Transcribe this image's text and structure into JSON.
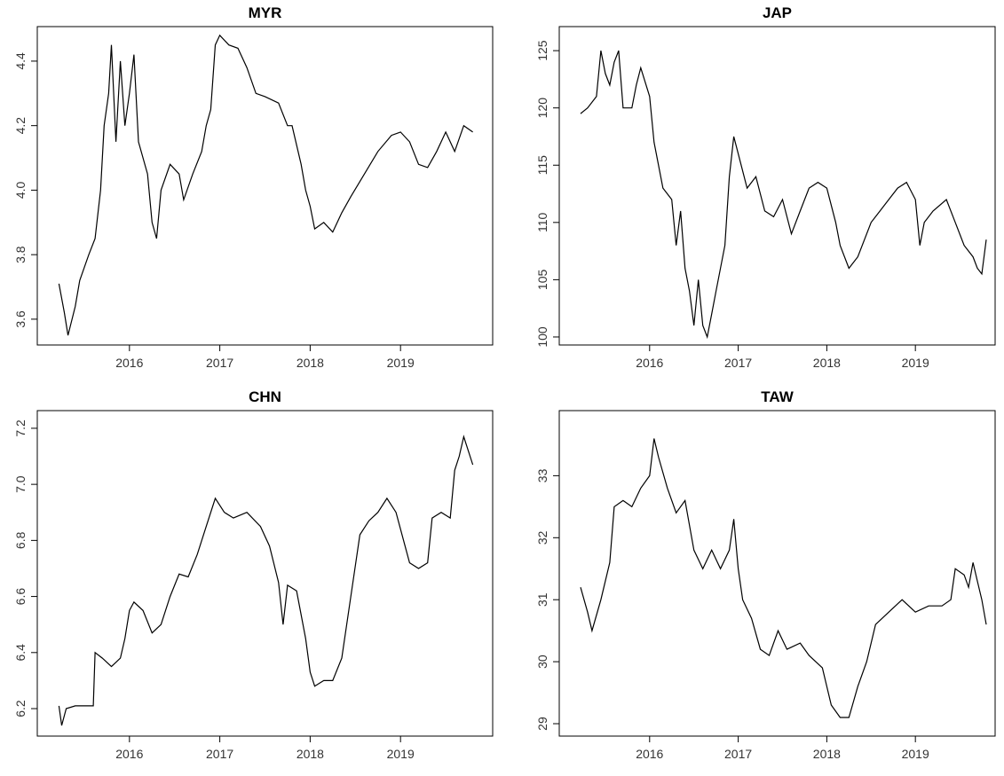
{
  "chart_data": [
    {
      "type": "line",
      "title": "MYR",
      "color": "#000000",
      "xlim": [
        2014.98,
        2020.02
      ],
      "ylim": [
        3.52,
        4.507
      ],
      "xticks": [
        2016,
        2017,
        2018,
        2019
      ],
      "yticks": [
        3.6,
        3.8,
        {
          "value": 4,
          "label": "4.0"
        },
        4.2,
        4.4
      ],
      "x": [
        2015.22,
        2015.28,
        2015.32,
        2015.4,
        2015.45,
        2015.55,
        2015.62,
        2015.68,
        2015.72,
        2015.77,
        2015.8,
        2015.85,
        2015.9,
        2015.95,
        2016.0,
        2016.05,
        2016.1,
        2016.2,
        2016.25,
        2016.3,
        2016.35,
        2016.45,
        2016.55,
        2016.6,
        2016.7,
        2016.8,
        2016.85,
        2016.9,
        2016.95,
        2017.0,
        2017.1,
        2017.2,
        2017.3,
        2017.4,
        2017.5,
        2017.65,
        2017.75,
        2017.8,
        2017.9,
        2017.95,
        2018.0,
        2018.05,
        2018.15,
        2018.25,
        2018.35,
        2018.45,
        2018.6,
        2018.75,
        2018.9,
        2019.0,
        2019.1,
        2019.2,
        2019.3,
        2019.4,
        2019.5,
        2019.6,
        2019.7,
        2019.8
      ],
      "values": [
        3.71,
        3.62,
        3.55,
        3.64,
        3.72,
        3.8,
        3.85,
        4.0,
        4.2,
        4.3,
        4.45,
        4.15,
        4.4,
        4.2,
        4.3,
        4.42,
        4.15,
        4.05,
        3.9,
        3.85,
        4.0,
        4.08,
        4.05,
        3.97,
        4.05,
        4.12,
        4.2,
        4.25,
        4.45,
        4.48,
        4.45,
        4.44,
        4.38,
        4.3,
        4.29,
        4.27,
        4.2,
        4.2,
        4.08,
        4.0,
        3.95,
        3.88,
        3.9,
        3.87,
        3.93,
        3.98,
        4.05,
        4.12,
        4.17,
        4.18,
        4.15,
        4.08,
        4.07,
        4.12,
        4.18,
        4.12,
        4.2,
        4.18
      ]
    },
    {
      "type": "line",
      "title": "JAP",
      "color": "#000000",
      "xlim": [
        2014.98,
        2019.9
      ],
      "ylim": [
        99.3,
        127.1
      ],
      "xticks": [
        2016,
        2017,
        2018,
        2019
      ],
      "yticks": [
        100,
        105,
        110,
        115,
        120,
        125
      ],
      "x": [
        2015.22,
        2015.3,
        2015.4,
        2015.45,
        2015.5,
        2015.55,
        2015.6,
        2015.65,
        2015.7,
        2015.8,
        2015.85,
        2015.9,
        2016.0,
        2016.05,
        2016.1,
        2016.15,
        2016.25,
        2016.3,
        2016.35,
        2016.4,
        2016.45,
        2016.5,
        2016.55,
        2016.6,
        2016.65,
        2016.7,
        2016.75,
        2016.85,
        2016.9,
        2016.95,
        2017.0,
        2017.1,
        2017.2,
        2017.3,
        2017.4,
        2017.5,
        2017.6,
        2017.7,
        2017.8,
        2017.9,
        2018.0,
        2018.1,
        2018.15,
        2018.25,
        2018.35,
        2018.5,
        2018.6,
        2018.7,
        2018.8,
        2018.9,
        2019.0,
        2019.05,
        2019.1,
        2019.2,
        2019.35,
        2019.45,
        2019.55,
        2019.65,
        2019.7,
        2019.75,
        2019.8
      ],
      "values": [
        119.5,
        120,
        121,
        125,
        123,
        122,
        124,
        125,
        120,
        120,
        122,
        123.5,
        121,
        117,
        115,
        113,
        112,
        108,
        111,
        106,
        104,
        101,
        105,
        101,
        100,
        102,
        104,
        108,
        114,
        117.5,
        116,
        113,
        114,
        111,
        110.5,
        112,
        109,
        111,
        113,
        113.5,
        113,
        110,
        108,
        106,
        107,
        110,
        111,
        112,
        113,
        113.5,
        112,
        108,
        110,
        111,
        112,
        110,
        108,
        107,
        106,
        105.5,
        108.5
      ]
    },
    {
      "type": "line",
      "title": "CHN",
      "color": "#000000",
      "xlim": [
        2014.98,
        2020.02
      ],
      "ylim": [
        6.102,
        7.263
      ],
      "xticks": [
        2016,
        2017,
        2018,
        2019
      ],
      "yticks": [
        6.2,
        6.4,
        6.6,
        6.8,
        {
          "value": 7,
          "label": "7.0"
        },
        7.2
      ],
      "x": [
        2015.22,
        2015.25,
        2015.3,
        2015.4,
        2015.6,
        2015.62,
        2015.7,
        2015.8,
        2015.9,
        2015.95,
        2016.0,
        2016.05,
        2016.15,
        2016.25,
        2016.35,
        2016.45,
        2016.55,
        2016.65,
        2016.75,
        2016.85,
        2016.95,
        2017.05,
        2017.15,
        2017.3,
        2017.45,
        2017.55,
        2017.65,
        2017.7,
        2017.75,
        2017.85,
        2017.95,
        2018.0,
        2018.05,
        2018.15,
        2018.25,
        2018.35,
        2018.45,
        2018.55,
        2018.65,
        2018.75,
        2018.85,
        2018.95,
        2019.05,
        2019.1,
        2019.2,
        2019.3,
        2019.35,
        2019.45,
        2019.55,
        2019.6,
        2019.65,
        2019.7,
        2019.75,
        2019.8
      ],
      "values": [
        6.21,
        6.14,
        6.2,
        6.21,
        6.21,
        6.4,
        6.38,
        6.35,
        6.38,
        6.45,
        6.55,
        6.58,
        6.55,
        6.47,
        6.5,
        6.6,
        6.68,
        6.67,
        6.75,
        6.85,
        6.95,
        6.9,
        6.88,
        6.9,
        6.85,
        6.78,
        6.65,
        6.5,
        6.64,
        6.62,
        6.45,
        6.33,
        6.28,
        6.3,
        6.3,
        6.38,
        6.6,
        6.82,
        6.87,
        6.9,
        6.95,
        6.9,
        6.78,
        6.72,
        6.7,
        6.72,
        6.88,
        6.9,
        6.88,
        7.05,
        7.1,
        7.17,
        7.12,
        7.07
      ]
    },
    {
      "type": "line",
      "title": "TAW",
      "color": "#000000",
      "xlim": [
        2014.98,
        2019.9
      ],
      "ylim": [
        28.8,
        34.05
      ],
      "xticks": [
        2016,
        2017,
        2018,
        2019
      ],
      "yticks": [
        29,
        30,
        31,
        32,
        33
      ],
      "x": [
        2015.22,
        2015.3,
        2015.35,
        2015.45,
        2015.55,
        2015.6,
        2015.7,
        2015.8,
        2015.9,
        2016.0,
        2016.05,
        2016.1,
        2016.2,
        2016.3,
        2016.4,
        2016.5,
        2016.6,
        2016.7,
        2016.8,
        2016.9,
        2016.95,
        2017.0,
        2017.05,
        2017.15,
        2017.25,
        2017.35,
        2017.45,
        2017.55,
        2017.7,
        2017.8,
        2017.95,
        2018.05,
        2018.15,
        2018.25,
        2018.35,
        2018.45,
        2018.55,
        2018.7,
        2018.85,
        2019.0,
        2019.15,
        2019.3,
        2019.4,
        2019.45,
        2019.55,
        2019.6,
        2019.65,
        2019.7,
        2019.75,
        2019.8
      ],
      "values": [
        31.2,
        30.8,
        30.5,
        31,
        31.6,
        32.5,
        32.6,
        32.5,
        32.8,
        33.0,
        33.6,
        33.3,
        32.8,
        32.4,
        32.6,
        31.8,
        31.5,
        31.8,
        31.5,
        31.8,
        32.3,
        31.5,
        31.0,
        30.7,
        30.2,
        30.1,
        30.5,
        30.2,
        30.3,
        30.1,
        29.9,
        29.3,
        29.1,
        29.1,
        29.6,
        30.0,
        30.6,
        30.8,
        31.0,
        30.8,
        30.9,
        30.9,
        31.0,
        31.5,
        31.4,
        31.2,
        31.6,
        31.3,
        31.0,
        30.6
      ]
    }
  ]
}
